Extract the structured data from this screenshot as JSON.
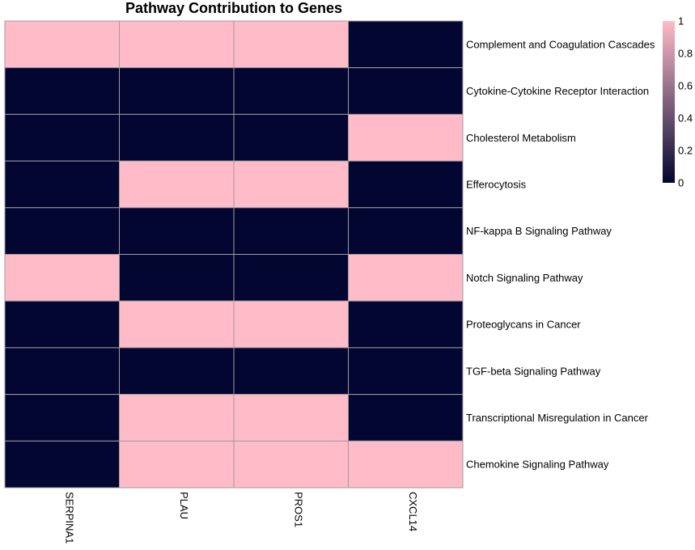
{
  "chart_data": {
    "type": "heatmap",
    "title": "Pathway Contribution to Genes",
    "columns": [
      "SERPINA1",
      "PLAU",
      "PROS1",
      "CXCL14"
    ],
    "rows": [
      "Complement and Coagulation Cascades",
      "Cytokine-Cytokine Receptor Interaction",
      "Cholesterol Metabolism",
      "Efferocytosis",
      "NF-kappa B Signaling Pathway",
      "Notch Signaling Pathway",
      "Proteoglycans in Cancer",
      "TGF-beta Signaling Pathway",
      "Transcriptional Misregulation in Cancer",
      "Chemokine Signaling Pathway"
    ],
    "values": [
      [
        1,
        1,
        1,
        0
      ],
      [
        0,
        0,
        0,
        0
      ],
      [
        0,
        0,
        0,
        1
      ],
      [
        0,
        1,
        1,
        0
      ],
      [
        0,
        0,
        0,
        0
      ],
      [
        1,
        0,
        0,
        1
      ],
      [
        0,
        1,
        1,
        0
      ],
      [
        0,
        0,
        0,
        0
      ],
      [
        0,
        1,
        1,
        0
      ],
      [
        0,
        1,
        1,
        1
      ]
    ],
    "color_scale": {
      "low": "#020631",
      "high": "#FFBBC8",
      "min": 0,
      "max": 1
    },
    "cell_border_color": "#9e9e9e",
    "legend": {
      "placement": "top-right",
      "ticks": [
        "0",
        "0.2",
        "0.4",
        "0.6",
        "0.8",
        "1"
      ]
    }
  }
}
